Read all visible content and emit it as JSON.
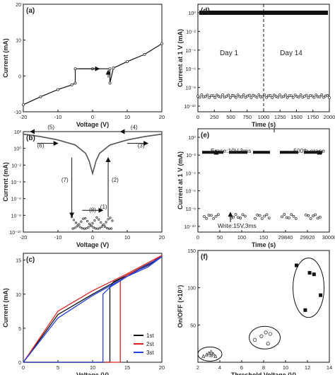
{
  "colors": {
    "black": "#111111",
    "red": "#e02020",
    "blue": "#2040e0",
    "grey": "#888888"
  },
  "chart_data": [
    {
      "panel": "(a)",
      "type": "line",
      "xlabel": "Voltage (V)",
      "ylabel": "Current (mA)",
      "xlim": [
        -20,
        20
      ],
      "ylim": [
        -10,
        20
      ],
      "xticks": [
        "-20",
        "-10",
        "0",
        "10",
        "20"
      ],
      "yticks": [
        "-10",
        "0",
        "10",
        "20"
      ],
      "series": [
        {
          "x": [
            -20,
            -15,
            -10,
            -6,
            -5,
            -5,
            0,
            5,
            5,
            6,
            10,
            15,
            20
          ],
          "y": [
            -8,
            -5.8,
            -3.8,
            -2.5,
            -2,
            2,
            2,
            2,
            -2,
            2.2,
            4,
            6,
            9
          ]
        }
      ]
    },
    {
      "panel": "(b)",
      "type": "line",
      "xlabel": "Voltage (V)",
      "ylabel": "Current (mA)",
      "xlim": [
        -20,
        20
      ],
      "ylim": [
        -10,
        2
      ],
      "yscale": "log",
      "xticks": [
        "-20",
        "-10",
        "0",
        "10",
        "20"
      ],
      "yticks": [
        "10²",
        "10⁰",
        "10⁻²",
        "10⁻⁴",
        "10⁻⁶",
        "10⁻⁸",
        "10⁻¹⁰"
      ],
      "annotations": [
        "(1)",
        "(2)",
        "(3)",
        "(4)",
        "(5)",
        "(6)",
        "(7)",
        "(8)"
      ],
      "series": [
        {
          "x": [
            -20,
            -15,
            -10,
            -5,
            -2,
            -1,
            0,
            1,
            2,
            5,
            10,
            15,
            20
          ],
          "y": [
            1.7,
            1.4,
            1,
            0.4,
            -0.6,
            -1.5,
            -3,
            -1.5,
            -0.6,
            0.4,
            1,
            1.4,
            1.7
          ]
        }
      ]
    },
    {
      "panel": "(c)",
      "type": "line",
      "xlabel": "Voltage (V)",
      "ylabel": "Current (mA)",
      "xlim": [
        0,
        20
      ],
      "ylim": [
        0,
        16
      ],
      "xticks": [
        "0",
        "5",
        "10",
        "15",
        "20"
      ],
      "yticks": [
        "0",
        "5",
        "10",
        "15"
      ],
      "legend": [
        "1st",
        "2st",
        "3st"
      ],
      "series": [
        {
          "name": "1st",
          "color": "#111111",
          "x": [
            0,
            12.5,
            12.5,
            13,
            15,
            18,
            20,
            15,
            10,
            5,
            0
          ],
          "y": [
            0,
            0,
            11,
            11.8,
            12.8,
            14.2,
            15.5,
            12.8,
            10,
            7,
            0
          ]
        },
        {
          "name": "2st",
          "color": "#e02020",
          "x": [
            0,
            14,
            14,
            15,
            18,
            20,
            15,
            10,
            5,
            0
          ],
          "y": [
            0,
            0,
            12,
            12.8,
            14.3,
            15.7,
            13,
            10.5,
            7.5,
            0
          ]
        },
        {
          "name": "3st",
          "color": "#2040e0",
          "x": [
            0,
            11.5,
            11.5,
            12.5,
            15,
            18,
            20,
            15,
            10,
            5,
            0
          ],
          "y": [
            0,
            0,
            10,
            11,
            12.6,
            14,
            15.5,
            12.6,
            9.8,
            6.5,
            0
          ]
        }
      ]
    },
    {
      "panel": "(d)",
      "type": "scatter",
      "xlabel": "Time (s)",
      "ylabel": "Current at 1 V (mA)",
      "xlim": [
        0,
        2000
      ],
      "ylim": [
        -10,
        2
      ],
      "yscale": "log",
      "xticks": [
        "0",
        "250",
        "500",
        "750",
        "1000",
        "1250",
        "1500",
        "1750",
        "2000"
      ],
      "yticks": [
        "10⁰",
        "10⁻²",
        "10⁻⁴",
        "10⁻⁶",
        "10⁻⁸",
        "10⁻¹⁰"
      ],
      "annotations": [
        "Day 1",
        "Day 14"
      ],
      "series": [
        {
          "name": "ON",
          "x": [
            0,
            2000
          ],
          "y": [
            0,
            0
          ]
        },
        {
          "name": "OFF",
          "x": [
            0,
            250,
            500,
            750,
            1000,
            1250,
            1500,
            1750,
            2000
          ],
          "y": [
            -9.7,
            -9.8,
            -9.9,
            -9.9,
            -9.8,
            -9.7,
            -9.7,
            -9.6,
            -9.6
          ]
        }
      ]
    },
    {
      "panel": "(e)",
      "type": "scatter",
      "xlabel": "Time (s)",
      "ylabel": "Current at 1 V (mA)",
      "ylim": [
        -10,
        2
      ],
      "yscale": "log",
      "xticks": [
        "0",
        "50",
        "100",
        "150",
        "29840",
        "29920",
        "30000"
      ],
      "yticks": [
        "10⁰",
        "10⁻²",
        "10⁻⁴",
        "10⁻⁶",
        "10⁻⁸",
        "10⁻¹⁰"
      ],
      "annotations": [
        "Erase:10V,3ms",
        "500th erase",
        "Write:15V,3ms"
      ],
      "series": [
        {
          "name": "ON",
          "y": 0
        },
        {
          "name": "OFF",
          "y": -9.6
        }
      ]
    },
    {
      "panel": "(f)",
      "type": "scatter",
      "xlabel": "Threshold Voltage (V)",
      "ylabel": "On/OFF (×10⁷)",
      "xlim": [
        2,
        14
      ],
      "ylim": [
        0,
        150
      ],
      "xticks": [
        "2",
        "4",
        "6",
        "8",
        "10",
        "12",
        "14"
      ],
      "yticks": [
        "50",
        "100",
        "150"
      ],
      "series": [
        {
          "name": "triangles",
          "x": [
            2.5,
            2.8,
            3.0,
            3.2,
            3.4,
            3.6,
            3.2
          ],
          "y": [
            8,
            10,
            12,
            9,
            11,
            8,
            14
          ]
        },
        {
          "name": "circles",
          "x": [
            7.2,
            7.8,
            8.2,
            8.6,
            8.4
          ],
          "y": [
            30,
            35,
            40,
            38,
            25
          ]
        },
        {
          "name": "squares",
          "x": [
            11,
            11.8,
            12.2,
            12.6,
            13.2
          ],
          "y": [
            130,
            70,
            120,
            118,
            90
          ]
        }
      ]
    }
  ]
}
